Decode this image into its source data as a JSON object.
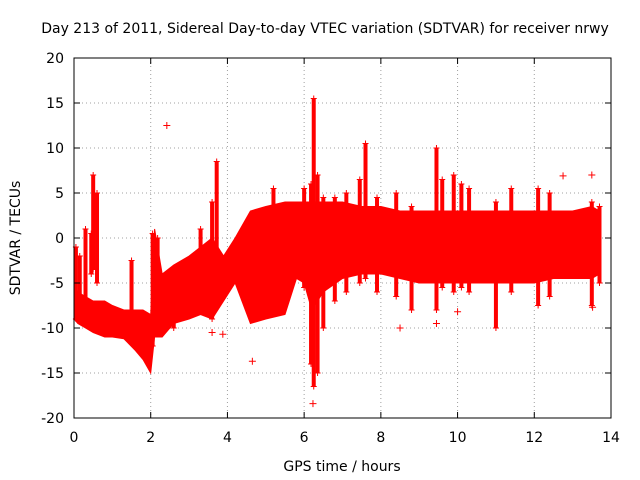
{
  "chart_data": {
    "type": "scatter",
    "title": "Day 213 of 2011, Sidereal Day-to-day VTEC variation (SDTVAR) for receiver nrwy",
    "xlabel": "GPS time / hours",
    "ylabel": "SDTVAR / TECUs",
    "xlim": [
      0,
      14
    ],
    "ylim": [
      -20,
      20
    ],
    "xticks": [
      0,
      2,
      4,
      6,
      8,
      10,
      12,
      14
    ],
    "yticks": [
      -20,
      -15,
      -10,
      -5,
      0,
      5,
      10,
      15,
      20
    ],
    "grid": true,
    "marker": "+",
    "color": "#ff0000",
    "series": [
      {
        "name": "SDTVAR",
        "envelope": [
          {
            "x": 0.0,
            "low": -9.0,
            "high": -5.0
          },
          {
            "x": 0.1,
            "low": -9.5,
            "high": -6.0
          },
          {
            "x": 0.3,
            "low": -10.0,
            "high": -6.5
          },
          {
            "x": 0.5,
            "low": -10.5,
            "high": -7.0
          },
          {
            "x": 0.8,
            "low": -11.0,
            "high": -7.0
          },
          {
            "x": 1.0,
            "low": -11.0,
            "high": -7.5
          },
          {
            "x": 1.3,
            "low": -11.2,
            "high": -8.0
          },
          {
            "x": 1.6,
            "low": -12.5,
            "high": -8.0
          },
          {
            "x": 1.8,
            "low": -13.5,
            "high": -8.0
          },
          {
            "x": 2.0,
            "low": -15.0,
            "high": -8.5
          },
          {
            "x": 2.1,
            "low": -11.0,
            "high": 1.0
          },
          {
            "x": 2.3,
            "low": -11.0,
            "high": -4.0
          },
          {
            "x": 2.6,
            "low": -9.5,
            "high": -3.0
          },
          {
            "x": 3.0,
            "low": -9.0,
            "high": -2.0
          },
          {
            "x": 3.3,
            "low": -8.5,
            "high": -1.0
          },
          {
            "x": 3.6,
            "low": -9.0,
            "high": 0.0
          },
          {
            "x": 3.9,
            "low": -7.0,
            "high": -2.0
          },
          {
            "x": 4.2,
            "low": -5.0,
            "high": 0.0
          },
          {
            "x": 4.6,
            "low": -9.5,
            "high": 3.0
          },
          {
            "x": 5.0,
            "low": -9.0,
            "high": 3.5
          },
          {
            "x": 5.5,
            "low": -8.5,
            "high": 4.0
          },
          {
            "x": 5.8,
            "low": -4.5,
            "high": 4.0
          },
          {
            "x": 6.0,
            "low": -5.0,
            "high": 4.0
          },
          {
            "x": 6.2,
            "low": -8.0,
            "high": 4.0
          },
          {
            "x": 6.5,
            "low": -6.0,
            "high": 4.0
          },
          {
            "x": 7.0,
            "low": -4.5,
            "high": 4.0
          },
          {
            "x": 7.5,
            "low": -4.0,
            "high": 3.5
          },
          {
            "x": 8.0,
            "low": -4.0,
            "high": 3.5
          },
          {
            "x": 8.5,
            "low": -4.5,
            "high": 3.0
          },
          {
            "x": 9.0,
            "low": -5.0,
            "high": 3.0
          },
          {
            "x": 9.5,
            "low": -5.0,
            "high": 3.0
          },
          {
            "x": 10.0,
            "low": -5.0,
            "high": 3.0
          },
          {
            "x": 10.5,
            "low": -5.0,
            "high": 3.0
          },
          {
            "x": 11.0,
            "low": -5.0,
            "high": 3.0
          },
          {
            "x": 11.5,
            "low": -5.0,
            "high": 3.0
          },
          {
            "x": 12.0,
            "low": -5.0,
            "high": 3.0
          },
          {
            "x": 12.5,
            "low": -4.5,
            "high": 3.0
          },
          {
            "x": 13.0,
            "low": -4.5,
            "high": 3.0
          },
          {
            "x": 13.5,
            "low": -4.5,
            "high": 3.5
          },
          {
            "x": 13.7,
            "low": -4.0,
            "high": 3.0
          }
        ],
        "spikes": [
          {
            "x": 0.05,
            "low": -9.0,
            "high": -1.0
          },
          {
            "x": 0.15,
            "low": -8.0,
            "high": -2.0
          },
          {
            "x": 0.3,
            "low": -7.0,
            "high": 1.0
          },
          {
            "x": 0.45,
            "low": -4.0,
            "high": 0.5
          },
          {
            "x": 0.5,
            "low": -3.5,
            "high": 7.0
          },
          {
            "x": 0.6,
            "low": -5.0,
            "high": 5.0
          },
          {
            "x": 1.5,
            "low": -10.0,
            "high": -2.5
          },
          {
            "x": 2.05,
            "low": -12.0,
            "high": 0.5
          },
          {
            "x": 2.18,
            "low": -10.0,
            "high": 0.0
          },
          {
            "x": 2.6,
            "low": -10.0,
            "high": -3.5
          },
          {
            "x": 3.3,
            "low": -5.0,
            "high": 1.0
          },
          {
            "x": 3.6,
            "low": -9.0,
            "high": 4.0
          },
          {
            "x": 3.72,
            "low": -6.0,
            "high": 8.5
          },
          {
            "x": 5.2,
            "low": -6.0,
            "high": 5.5
          },
          {
            "x": 6.0,
            "low": -5.5,
            "high": 5.5
          },
          {
            "x": 6.18,
            "low": -14.0,
            "high": 6.0
          },
          {
            "x": 6.25,
            "low": -16.5,
            "high": 15.5
          },
          {
            "x": 6.35,
            "low": -15.0,
            "high": 7.0
          },
          {
            "x": 6.5,
            "low": -10.0,
            "high": 4.5
          },
          {
            "x": 6.8,
            "low": -7.0,
            "high": 4.5
          },
          {
            "x": 7.1,
            "low": -6.0,
            "high": 5.0
          },
          {
            "x": 7.45,
            "low": -5.0,
            "high": 6.5
          },
          {
            "x": 7.6,
            "low": -4.5,
            "high": 10.5
          },
          {
            "x": 7.9,
            "low": -6.0,
            "high": 4.5
          },
          {
            "x": 8.4,
            "low": -6.5,
            "high": 5.0
          },
          {
            "x": 8.8,
            "low": -8.0,
            "high": 3.5
          },
          {
            "x": 9.45,
            "low": -8.0,
            "high": 10.0
          },
          {
            "x": 9.6,
            "low": -5.5,
            "high": 6.5
          },
          {
            "x": 9.9,
            "low": -6.0,
            "high": 7.0
          },
          {
            "x": 10.1,
            "low": -5.5,
            "high": 6.0
          },
          {
            "x": 10.3,
            "low": -6.0,
            "high": 5.5
          },
          {
            "x": 11.0,
            "low": -10.0,
            "high": 4.0
          },
          {
            "x": 11.4,
            "low": -6.0,
            "high": 5.5
          },
          {
            "x": 12.1,
            "low": -7.5,
            "high": 5.5
          },
          {
            "x": 12.4,
            "low": -6.5,
            "high": 5.0
          },
          {
            "x": 13.5,
            "low": -7.5,
            "high": 4.0
          },
          {
            "x": 13.7,
            "low": -5.0,
            "high": 3.5
          }
        ],
        "outliers": [
          {
            "x": 2.42,
            "y": 12.5
          },
          {
            "x": 4.65,
            "y": -13.7
          },
          {
            "x": 3.6,
            "y": -10.5
          },
          {
            "x": 3.88,
            "y": -10.7
          },
          {
            "x": 6.23,
            "y": -18.4
          },
          {
            "x": 8.5,
            "y": -10.0
          },
          {
            "x": 10.0,
            "y": -8.2
          },
          {
            "x": 12.75,
            "y": 6.9
          },
          {
            "x": 13.5,
            "y": 7.0
          },
          {
            "x": 13.52,
            "y": -7.7
          },
          {
            "x": 9.45,
            "y": -9.5
          }
        ]
      }
    ]
  }
}
